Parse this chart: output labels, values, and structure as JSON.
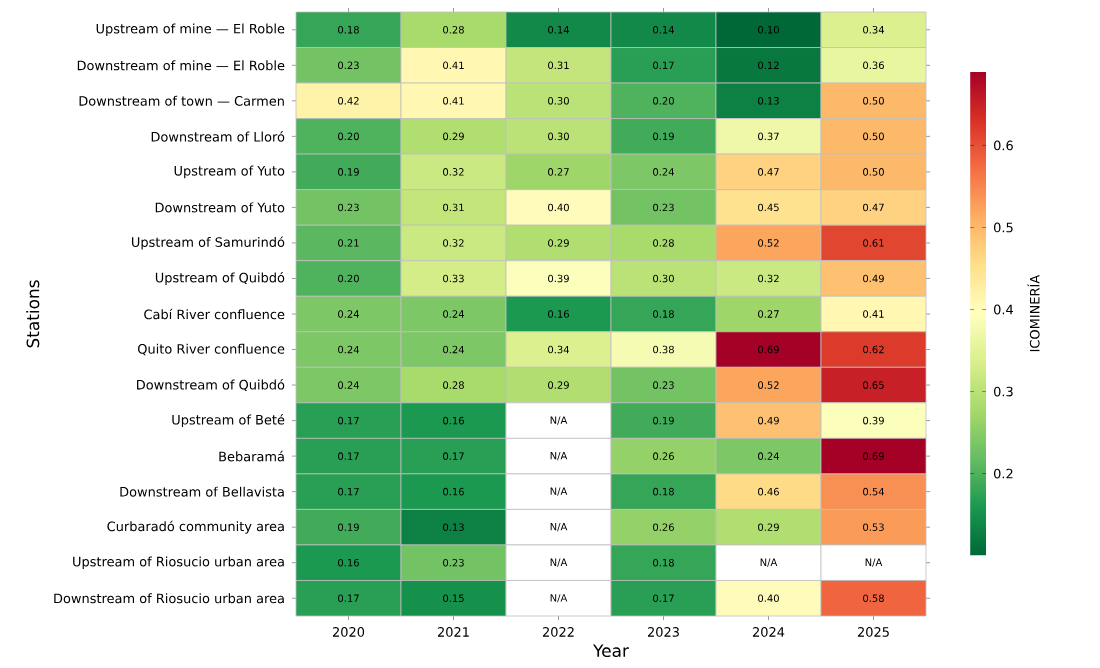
{
  "chart_data": {
    "type": "heatmap",
    "xlabel": "Year",
    "ylabel": "Stations",
    "clabel": "ICOMINERÍA",
    "categories": [
      "2020",
      "2021",
      "2022",
      "2023",
      "2024",
      "2025"
    ],
    "y_categories": [
      "Upstream of mine — El Roble",
      "Downstream of mine — El Roble",
      "Downstream of town — Carmen",
      "Downstream of Lloró",
      "Upstream of Yuto",
      "Downstream of Yuto",
      "Upstream of Samurindó",
      "Upstream of Quibdó",
      "Cabí River confluence",
      "Quito River confluence",
      "Downstream of Quibdó",
      "Upstream of Beté",
      "Bebaramá",
      "Downstream of Bellavista",
      "Curbaradó community area",
      "Upstream of Riosucio urban area",
      "Downstream of Riosucio urban area"
    ],
    "cells": [
      [
        0.18,
        0.28,
        0.14,
        0.14,
        0.1,
        0.34
      ],
      [
        0.23,
        0.41,
        0.31,
        0.17,
        0.12,
        0.36
      ],
      [
        0.42,
        0.41,
        0.3,
        0.2,
        0.13,
        0.5
      ],
      [
        0.2,
        0.29,
        0.3,
        0.19,
        0.37,
        0.5
      ],
      [
        0.19,
        0.32,
        0.27,
        0.24,
        0.47,
        0.5
      ],
      [
        0.23,
        0.31,
        0.4,
        0.23,
        0.45,
        0.47
      ],
      [
        0.21,
        0.32,
        0.29,
        0.28,
        0.52,
        0.61
      ],
      [
        0.2,
        0.33,
        0.39,
        0.3,
        0.32,
        0.49
      ],
      [
        0.24,
        0.24,
        0.16,
        0.18,
        0.27,
        0.41
      ],
      [
        0.24,
        0.24,
        0.34,
        0.38,
        0.69,
        0.62
      ],
      [
        0.24,
        0.28,
        0.29,
        0.23,
        0.52,
        0.65
      ],
      [
        0.17,
        0.16,
        null,
        0.19,
        0.49,
        0.39
      ],
      [
        0.17,
        0.17,
        null,
        0.26,
        0.24,
        0.69
      ],
      [
        0.17,
        0.16,
        null,
        0.18,
        0.46,
        0.54
      ],
      [
        0.19,
        0.13,
        null,
        0.26,
        0.29,
        0.53
      ],
      [
        0.16,
        0.23,
        null,
        0.18,
        null,
        null
      ],
      [
        0.17,
        0.15,
        null,
        0.17,
        0.4,
        0.58
      ]
    ],
    "cell_labels": [
      [
        "0.18",
        "0.28",
        "0.14",
        "0.14",
        "0.10",
        "0.34"
      ],
      [
        "0.23",
        "0.41",
        "0.31",
        "0.17",
        "0.12",
        "0.36"
      ],
      [
        "0.42",
        "0.41",
        "0.30",
        "0.20",
        "0.13",
        "0.50"
      ],
      [
        "0.20",
        "0.29",
        "0.30",
        "0.19",
        "0.37",
        "0.50"
      ],
      [
        "0.19",
        "0.32",
        "0.27",
        "0.24",
        "0.47",
        "0.50"
      ],
      [
        "0.23",
        "0.31",
        "0.40",
        "0.23",
        "0.45",
        "0.47"
      ],
      [
        "0.21",
        "0.32",
        "0.29",
        "0.28",
        "0.52",
        "0.61"
      ],
      [
        "0.20",
        "0.33",
        "0.39",
        "0.30",
        "0.32",
        "0.49"
      ],
      [
        "0.24",
        "0.24",
        "0.16",
        "0.18",
        "0.27",
        "0.41"
      ],
      [
        "0.24",
        "0.24",
        "0.34",
        "0.38",
        "0.69",
        "0.62"
      ],
      [
        "0.24",
        "0.28",
        "0.29",
        "0.23",
        "0.52",
        "0.65"
      ],
      [
        "0.17",
        "0.16",
        "N/A",
        "0.19",
        "0.49",
        "0.39"
      ],
      [
        "0.17",
        "0.17",
        "N/A",
        "0.26",
        "0.24",
        "0.69"
      ],
      [
        "0.17",
        "0.16",
        "N/A",
        "0.18",
        "0.46",
        "0.54"
      ],
      [
        "0.19",
        "0.13",
        "N/A",
        "0.26",
        "0.29",
        "0.53"
      ],
      [
        "0.16",
        "0.23",
        "N/A",
        "0.18",
        "N/A",
        "N/A"
      ],
      [
        "0.17",
        "0.15",
        "N/A",
        "0.17",
        "0.40",
        "0.58"
      ]
    ],
    "clim": [
      0.1,
      0.69
    ],
    "cticks": [
      0.2,
      0.3,
      0.4,
      0.5,
      0.6
    ],
    "data_labels": true
  }
}
